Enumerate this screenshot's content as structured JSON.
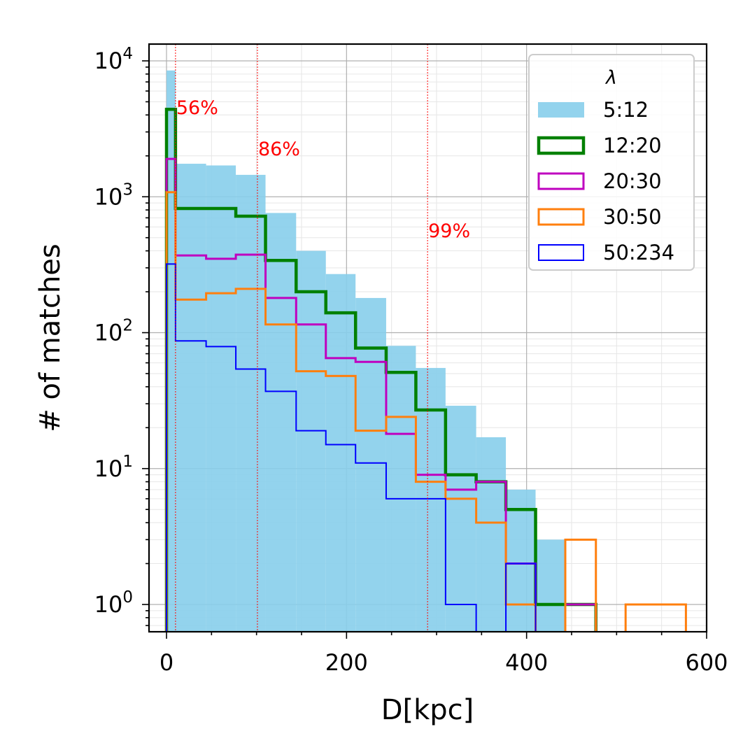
{
  "chart_data": {
    "type": "histogram",
    "xlabel": "D[kpc]",
    "ylabel": "# of matches",
    "xlim": [
      -20,
      600
    ],
    "ylim": [
      0.65,
      13500
    ],
    "yscale": "log",
    "grid": true,
    "xticks": [
      {
        "value": 0,
        "label": "0"
      },
      {
        "value": 200,
        "label": "200"
      },
      {
        "value": 400,
        "label": "400"
      },
      {
        "value": 600,
        "label": "600"
      }
    ],
    "yticks": [
      {
        "value": 1,
        "base": "10",
        "exp": "0"
      },
      {
        "value": 10,
        "base": "10",
        "exp": "1"
      },
      {
        "value": 100,
        "base": "10",
        "exp": "2"
      },
      {
        "value": 1000,
        "base": "10",
        "exp": "3"
      },
      {
        "value": 10000,
        "base": "10",
        "exp": "4"
      }
    ],
    "legend": {
      "title": "λ",
      "position": "top-right"
    },
    "percentile_lines": [
      {
        "x": 10,
        "label": "56%"
      },
      {
        "x": 101,
        "label": "86%"
      },
      {
        "x": 290,
        "label": "99%"
      }
    ],
    "series": [
      {
        "name": "5:12",
        "style": "filled",
        "color": "#87ceeb",
        "bins": [
          {
            "x0": 0,
            "x1": 10,
            "count": 8500
          },
          {
            "x0": 10,
            "x1": 44,
            "count": 1750
          },
          {
            "x0": 44,
            "x1": 77,
            "count": 1700
          },
          {
            "x0": 77,
            "x1": 110,
            "count": 1450
          },
          {
            "x0": 110,
            "x1": 144,
            "count": 760
          },
          {
            "x0": 144,
            "x1": 177,
            "count": 400
          },
          {
            "x0": 177,
            "x1": 210,
            "count": 270
          },
          {
            "x0": 210,
            "x1": 244,
            "count": 180
          },
          {
            "x0": 244,
            "x1": 277,
            "count": 80
          },
          {
            "x0": 277,
            "x1": 310,
            "count": 55
          },
          {
            "x0": 310,
            "x1": 344,
            "count": 29
          },
          {
            "x0": 344,
            "x1": 377,
            "count": 17
          },
          {
            "x0": 377,
            "x1": 410,
            "count": 7
          },
          {
            "x0": 410,
            "x1": 443,
            "count": 3
          }
        ]
      },
      {
        "name": "12:20",
        "style": "step",
        "color": "#008000",
        "bins": [
          {
            "x0": 0,
            "x1": 10,
            "count": 4400
          },
          {
            "x0": 10,
            "x1": 77,
            "count": 820
          },
          {
            "x0": 77,
            "x1": 110,
            "count": 720
          },
          {
            "x0": 110,
            "x1": 144,
            "count": 340
          },
          {
            "x0": 144,
            "x1": 177,
            "count": 200
          },
          {
            "x0": 177,
            "x1": 210,
            "count": 140
          },
          {
            "x0": 210,
            "x1": 244,
            "count": 77
          },
          {
            "x0": 244,
            "x1": 277,
            "count": 51
          },
          {
            "x0": 277,
            "x1": 310,
            "count": 27
          },
          {
            "x0": 310,
            "x1": 344,
            "count": 9
          },
          {
            "x0": 344,
            "x1": 377,
            "count": 8
          },
          {
            "x0": 377,
            "x1": 410,
            "count": 5
          },
          {
            "x0": 410,
            "x1": 477,
            "count": 1
          }
        ]
      },
      {
        "name": "20:30",
        "style": "step",
        "color": "#bf00bf",
        "bins": [
          {
            "x0": 0,
            "x1": 10,
            "count": 1900
          },
          {
            "x0": 10,
            "x1": 44,
            "count": 370
          },
          {
            "x0": 44,
            "x1": 77,
            "count": 350
          },
          {
            "x0": 77,
            "x1": 110,
            "count": 375
          },
          {
            "x0": 110,
            "x1": 144,
            "count": 180
          },
          {
            "x0": 144,
            "x1": 177,
            "count": 115
          },
          {
            "x0": 177,
            "x1": 210,
            "count": 65
          },
          {
            "x0": 210,
            "x1": 244,
            "count": 61
          },
          {
            "x0": 244,
            "x1": 277,
            "count": 18
          },
          {
            "x0": 277,
            "x1": 310,
            "count": 9
          },
          {
            "x0": 310,
            "x1": 344,
            "count": 7
          },
          {
            "x0": 344,
            "x1": 377,
            "count": 8
          },
          {
            "x0": 377,
            "x1": 410,
            "count": 2
          },
          {
            "x0": 443,
            "x1": 477,
            "count": 1
          }
        ]
      },
      {
        "name": "30:50",
        "style": "step",
        "color": "#ff7f0e",
        "bins": [
          {
            "x0": 0,
            "x1": 10,
            "count": 1080
          },
          {
            "x0": 10,
            "x1": 44,
            "count": 175
          },
          {
            "x0": 44,
            "x1": 77,
            "count": 195
          },
          {
            "x0": 77,
            "x1": 110,
            "count": 210
          },
          {
            "x0": 110,
            "x1": 144,
            "count": 115
          },
          {
            "x0": 144,
            "x1": 177,
            "count": 52
          },
          {
            "x0": 177,
            "x1": 210,
            "count": 48
          },
          {
            "x0": 210,
            "x1": 244,
            "count": 19
          },
          {
            "x0": 244,
            "x1": 277,
            "count": 24
          },
          {
            "x0": 277,
            "x1": 310,
            "count": 8
          },
          {
            "x0": 310,
            "x1": 344,
            "count": 6
          },
          {
            "x0": 344,
            "x1": 377,
            "count": 4
          },
          {
            "x0": 377,
            "x1": 410,
            "count": 1
          },
          {
            "x0": 443,
            "x1": 477,
            "count": 3
          },
          {
            "x0": 510,
            "x1": 577,
            "count": 1
          }
        ]
      },
      {
        "name": "50:234",
        "style": "step",
        "color": "#0000ff",
        "bins": [
          {
            "x0": 0,
            "x1": 10,
            "count": 320
          },
          {
            "x0": 10,
            "x1": 44,
            "count": 87
          },
          {
            "x0": 44,
            "x1": 77,
            "count": 79
          },
          {
            "x0": 77,
            "x1": 110,
            "count": 54
          },
          {
            "x0": 110,
            "x1": 144,
            "count": 37
          },
          {
            "x0": 144,
            "x1": 177,
            "count": 19
          },
          {
            "x0": 177,
            "x1": 210,
            "count": 15
          },
          {
            "x0": 210,
            "x1": 244,
            "count": 11
          },
          {
            "x0": 244,
            "x1": 310,
            "count": 6
          },
          {
            "x0": 310,
            "x1": 344,
            "count": 1
          },
          {
            "x0": 377,
            "x1": 410,
            "count": 2
          }
        ]
      }
    ]
  }
}
